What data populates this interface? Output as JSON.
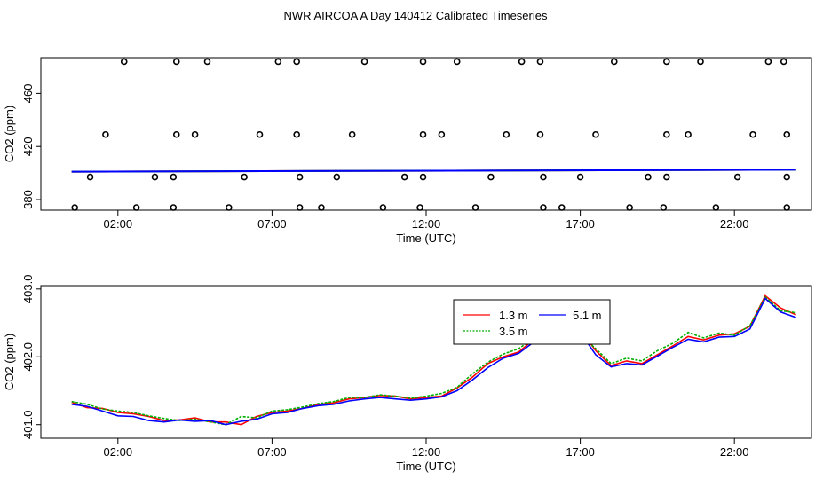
{
  "title": "NWR AIRCOA A  Day 140412  Calibrated Timeseries",
  "chart_data": [
    {
      "type": "scatter",
      "xlabel": "Time (UTC)",
      "ylabel": "CO2 (ppm)",
      "xticks": [
        "02:00",
        "07:00",
        "12:00",
        "17:00",
        "22:00"
      ],
      "xtick_hours": [
        2,
        7,
        12,
        17,
        22
      ],
      "yticks": [
        380,
        420,
        460
      ],
      "xlim": [
        -0.5,
        24.5
      ],
      "ylim": [
        372,
        487
      ],
      "flat_line": {
        "x": [
          0.5,
          24.0
        ],
        "y": [
          401.0,
          402.5
        ]
      },
      "points": [
        [
          2.2,
          484
        ],
        [
          3.9,
          484
        ],
        [
          4.9,
          484
        ],
        [
          7.2,
          484
        ],
        [
          7.8,
          484
        ],
        [
          10.0,
          484
        ],
        [
          11.9,
          484
        ],
        [
          13.0,
          484
        ],
        [
          15.1,
          484
        ],
        [
          15.7,
          484
        ],
        [
          18.1,
          484
        ],
        [
          19.8,
          484
        ],
        [
          20.9,
          484
        ],
        [
          23.1,
          484
        ],
        [
          23.6,
          484
        ],
        [
          1.6,
          429
        ],
        [
          3.9,
          429
        ],
        [
          4.5,
          429
        ],
        [
          6.6,
          429
        ],
        [
          7.8,
          429
        ],
        [
          9.6,
          429
        ],
        [
          11.9,
          429
        ],
        [
          12.5,
          429
        ],
        [
          14.6,
          429
        ],
        [
          15.7,
          429
        ],
        [
          17.5,
          429
        ],
        [
          19.8,
          429
        ],
        [
          20.5,
          429
        ],
        [
          22.6,
          429
        ],
        [
          23.7,
          429
        ],
        [
          1.1,
          397
        ],
        [
          3.2,
          397
        ],
        [
          3.8,
          397
        ],
        [
          6.1,
          397
        ],
        [
          7.9,
          397
        ],
        [
          9.1,
          397
        ],
        [
          11.3,
          397
        ],
        [
          11.9,
          397
        ],
        [
          14.1,
          397
        ],
        [
          15.8,
          397
        ],
        [
          17.0,
          397
        ],
        [
          19.2,
          397
        ],
        [
          19.8,
          397
        ],
        [
          22.1,
          397
        ],
        [
          23.7,
          397
        ],
        [
          0.6,
          374
        ],
        [
          2.6,
          374
        ],
        [
          3.8,
          374
        ],
        [
          5.6,
          374
        ],
        [
          7.9,
          374
        ],
        [
          8.6,
          374
        ],
        [
          10.6,
          374
        ],
        [
          11.8,
          374
        ],
        [
          13.6,
          374
        ],
        [
          15.8,
          374
        ],
        [
          16.4,
          374
        ],
        [
          18.6,
          374
        ],
        [
          19.7,
          374
        ],
        [
          21.4,
          374
        ],
        [
          23.7,
          374
        ]
      ]
    },
    {
      "type": "line",
      "xlabel": "Time (UTC)",
      "ylabel": "CO2 (ppm)",
      "xticks": [
        "02:00",
        "07:00",
        "12:00",
        "17:00",
        "22:00"
      ],
      "xtick_hours": [
        2,
        7,
        12,
        17,
        22
      ],
      "yticks": [
        "401.0",
        "402.0",
        "403.0"
      ],
      "ytick_values": [
        401.0,
        402.0,
        403.0
      ],
      "xlim": [
        -0.5,
        24.5
      ],
      "ylim": [
        400.8,
        403.05
      ],
      "legend": {
        "placement": "top-center",
        "entries": [
          "1.3 m",
          "3.5 m",
          "5.1 m"
        ]
      },
      "x": [
        0.5,
        1.0,
        1.5,
        2.0,
        2.5,
        3.0,
        3.5,
        4.0,
        4.5,
        5.0,
        5.5,
        6.0,
        6.5,
        7.0,
        7.5,
        8.0,
        8.5,
        9.0,
        9.5,
        10.0,
        10.5,
        11.0,
        11.5,
        12.0,
        12.5,
        13.0,
        13.5,
        14.0,
        14.5,
        15.0,
        15.5,
        16.0,
        16.5,
        17.0,
        17.5,
        18.0,
        18.5,
        19.0,
        19.5,
        20.0,
        20.5,
        21.0,
        21.5,
        22.0,
        22.5,
        23.0,
        23.5,
        24.0
      ],
      "series": [
        {
          "name": "1.3 m",
          "color": "#ff0000",
          "values": [
            401.33,
            401.25,
            401.24,
            401.18,
            401.16,
            401.12,
            401.06,
            401.07,
            401.1,
            401.04,
            401.04,
            401.0,
            401.12,
            401.18,
            401.2,
            401.24,
            401.3,
            401.32,
            401.38,
            401.4,
            401.43,
            401.42,
            401.38,
            401.4,
            401.42,
            401.54,
            401.7,
            401.9,
            402.0,
            402.07,
            402.26,
            402.4,
            402.36,
            402.4,
            402.09,
            401.87,
            401.94,
            401.9,
            402.03,
            402.16,
            402.3,
            402.25,
            402.32,
            402.34,
            402.45,
            402.9,
            402.72,
            402.62
          ]
        },
        {
          "name": "3.5 m",
          "color": "#00b000",
          "values": [
            401.34,
            401.3,
            401.23,
            401.2,
            401.18,
            401.13,
            401.09,
            401.06,
            401.08,
            401.04,
            401.0,
            401.12,
            401.1,
            401.2,
            401.22,
            401.26,
            401.31,
            401.34,
            401.4,
            401.4,
            401.44,
            401.42,
            401.39,
            401.42,
            401.46,
            401.55,
            401.75,
            401.92,
            402.04,
            402.12,
            402.28,
            402.4,
            402.38,
            402.33,
            402.12,
            401.9,
            401.98,
            401.94,
            402.09,
            402.2,
            402.36,
            402.28,
            402.35,
            402.32,
            402.46,
            402.88,
            402.68,
            402.65
          ]
        },
        {
          "name": "5.1 m",
          "color": "#0000ff",
          "values": [
            401.3,
            401.27,
            401.2,
            401.13,
            401.12,
            401.06,
            401.04,
            401.07,
            401.05,
            401.06,
            401.0,
            401.05,
            401.08,
            401.16,
            401.18,
            401.24,
            401.28,
            401.3,
            401.35,
            401.38,
            401.4,
            401.38,
            401.36,
            401.38,
            401.41,
            401.5,
            401.66,
            401.84,
            401.98,
            402.05,
            402.22,
            402.38,
            402.33,
            402.36,
            402.03,
            401.85,
            401.9,
            401.88,
            402.01,
            402.14,
            402.26,
            402.22,
            402.29,
            402.3,
            402.41,
            402.86,
            402.66,
            402.58
          ]
        }
      ]
    }
  ]
}
